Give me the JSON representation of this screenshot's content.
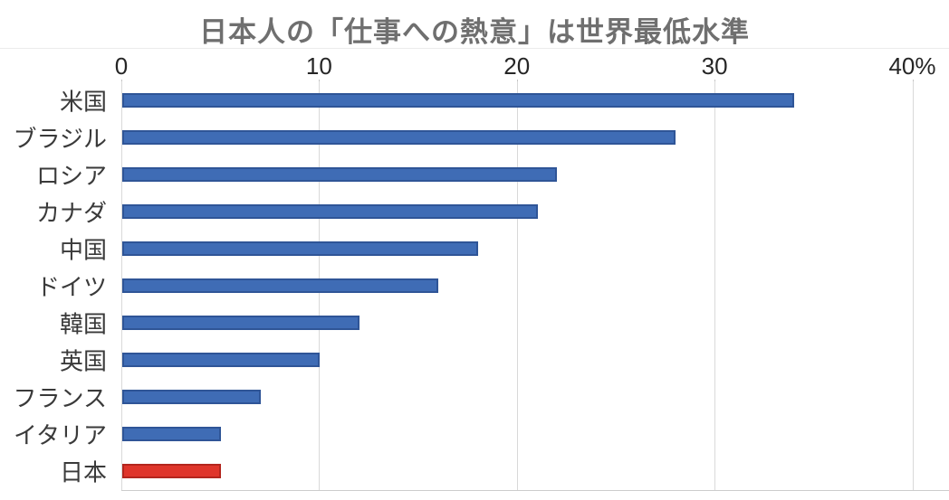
{
  "title": "日本人の「仕事への熱意」は世界最低水準",
  "colors": {
    "bar_blue_fill": "#3F6CB5",
    "bar_blue_border": "#2F5597",
    "bar_red_fill": "#DF352B",
    "bar_red_border": "#B3261E",
    "gridline": "#D9D9D9",
    "axis_text": "#262626",
    "title_text": "#6F6F6F",
    "category_text": "#3A3A3A"
  },
  "chart_data": {
    "type": "bar",
    "orientation": "horizontal",
    "title": "日本人の「仕事への熱意」は世界最低水準",
    "categories": [
      "米国",
      "ブラジル",
      "ロシア",
      "カナダ",
      "中国",
      "ドイツ",
      "韓国",
      "英国",
      "フランス",
      "イタリア",
      "日本"
    ],
    "values": [
      34,
      28,
      22,
      21,
      18,
      16,
      12,
      10,
      7,
      5,
      5
    ],
    "unit": "%",
    "highlight_category": "日本",
    "highlight_note": "日本のみ赤色、他は青色",
    "x_ticks": [
      0,
      10,
      20,
      30,
      40
    ],
    "x_tick_labels": [
      "0",
      "10",
      "20",
      "30",
      "40%"
    ],
    "xlim": [
      0,
      41.9
    ],
    "xlabel": "",
    "ylabel": "",
    "grid": "vertical",
    "legend": "none"
  }
}
